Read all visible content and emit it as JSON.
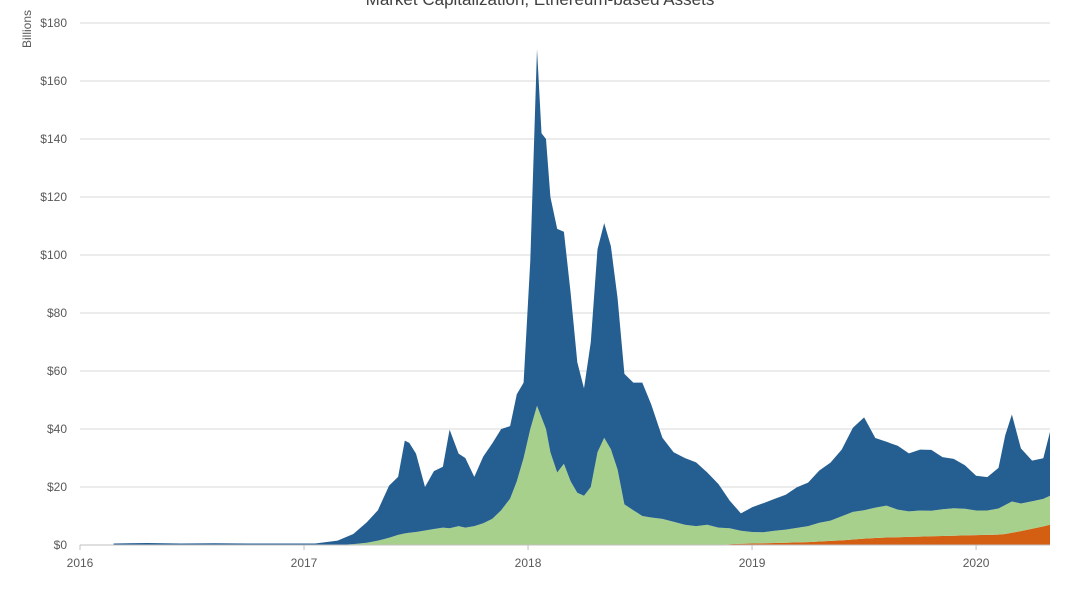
{
  "chart_data": {
    "type": "area",
    "stacked": true,
    "title": "Market Capitalization, Ethereum-based Assets",
    "ylabel": "Billions",
    "ylim": [
      0,
      180
    ],
    "xlim": [
      2016.0,
      2020.33
    ],
    "y_ticks": [
      0,
      20,
      40,
      60,
      80,
      100,
      120,
      140,
      160,
      180
    ],
    "y_tick_labels": [
      "$0",
      "$20",
      "$40",
      "$60",
      "$80",
      "$100",
      "$120",
      "$140",
      "$160",
      "$180"
    ],
    "x_ticks": [
      2016,
      2017,
      2018,
      2019,
      2020
    ],
    "x_tick_labels": [
      "2016",
      "2017",
      "2018",
      "2019",
      "2020"
    ],
    "grid": true,
    "x": [
      2016.15,
      2016.3,
      2016.45,
      2016.6,
      2016.75,
      2016.9,
      2017.05,
      2017.15,
      2017.22,
      2017.28,
      2017.33,
      2017.38,
      2017.42,
      2017.45,
      2017.47,
      2017.5,
      2017.54,
      2017.58,
      2017.62,
      2017.65,
      2017.69,
      2017.72,
      2017.76,
      2017.8,
      2017.84,
      2017.88,
      2017.92,
      2017.95,
      2017.98,
      2018.01,
      2018.04,
      2018.06,
      2018.08,
      2018.1,
      2018.13,
      2018.16,
      2018.19,
      2018.22,
      2018.25,
      2018.28,
      2018.31,
      2018.34,
      2018.37,
      2018.4,
      2018.43,
      2018.47,
      2018.51,
      2018.55,
      2018.6,
      2018.65,
      2018.7,
      2018.75,
      2018.8,
      2018.85,
      2018.9,
      2018.95,
      2019.0,
      2019.05,
      2019.1,
      2019.15,
      2019.2,
      2019.25,
      2019.3,
      2019.35,
      2019.4,
      2019.45,
      2019.5,
      2019.55,
      2019.6,
      2019.65,
      2019.7,
      2019.75,
      2019.8,
      2019.85,
      2019.9,
      2019.95,
      2020.0,
      2020.05,
      2020.1,
      2020.13,
      2020.16,
      2020.2,
      2020.25,
      2020.3,
      2020.33
    ],
    "series": [
      {
        "name": "",
        "color": "#d45f13",
        "values": [
          0,
          0,
          0,
          0,
          0,
          0,
          0,
          0,
          0,
          0,
          0,
          0,
          0,
          0,
          0,
          0,
          0,
          0,
          0,
          0,
          0,
          0,
          0,
          0,
          0,
          0,
          0,
          0,
          0,
          0,
          0,
          0,
          0,
          0,
          0,
          0,
          0,
          0,
          0,
          0,
          0,
          0,
          0,
          0,
          0,
          0,
          0,
          0,
          0,
          0,
          0,
          0,
          0,
          0,
          0.3,
          0.4,
          0.5,
          0.6,
          0.7,
          0.8,
          0.9,
          1.0,
          1.2,
          1.4,
          1.6,
          1.9,
          2.2,
          2.4,
          2.6,
          2.7,
          2.8,
          2.9,
          3.0,
          3.1,
          3.2,
          3.3,
          3.4,
          3.5,
          3.6,
          3.8,
          4.2,
          4.8,
          5.6,
          6.4,
          7.0
        ]
      },
      {
        "name": "",
        "color": "#a8d08d",
        "values": [
          0,
          0,
          0,
          0,
          0,
          0,
          0,
          0,
          0.3,
          0.8,
          1.5,
          2.5,
          3.5,
          4.0,
          4.2,
          4.5,
          5.0,
          5.5,
          6.0,
          5.8,
          6.5,
          6.0,
          6.5,
          7.5,
          9.0,
          12,
          16,
          22,
          30,
          40,
          48,
          44,
          40,
          32,
          25,
          28,
          22,
          18,
          17,
          20,
          32,
          37,
          33,
          26,
          14,
          12,
          10,
          9.5,
          9,
          8,
          7,
          6.5,
          7,
          6,
          5.5,
          4.5,
          4,
          3.8,
          4.2,
          4.5,
          5,
          5.5,
          6.5,
          7.0,
          8.3,
          9.5,
          9.8,
          10.5,
          11,
          9.5,
          8.8,
          9,
          8.8,
          9.2,
          9.5,
          9.2,
          8.5,
          8.4,
          9.0,
          10.0,
          10.8,
          9.5,
          9.5,
          9.5,
          10.0
        ]
      },
      {
        "name": "",
        "color": "#255e91",
        "values": [
          0.5,
          0.7,
          0.5,
          0.6,
          0.5,
          0.5,
          0.5,
          1.5,
          3.5,
          7.0,
          10.5,
          18,
          20,
          32,
          31,
          27,
          15,
          20,
          21,
          34,
          25,
          24,
          17,
          23,
          26,
          28,
          25,
          30,
          26,
          58,
          123,
          98,
          100,
          88,
          84,
          80,
          65,
          45,
          37,
          50,
          70,
          74,
          70,
          59,
          45,
          44,
          46,
          39,
          28,
          24,
          23,
          22,
          18,
          15,
          9.5,
          6.0,
          8.5,
          10,
          11,
          12,
          14,
          15,
          18,
          20,
          23,
          29,
          32,
          24,
          22,
          22,
          20,
          21,
          21,
          18,
          17,
          15,
          12,
          11.5,
          14,
          24,
          30,
          19,
          14,
          14,
          22
        ]
      }
    ]
  }
}
